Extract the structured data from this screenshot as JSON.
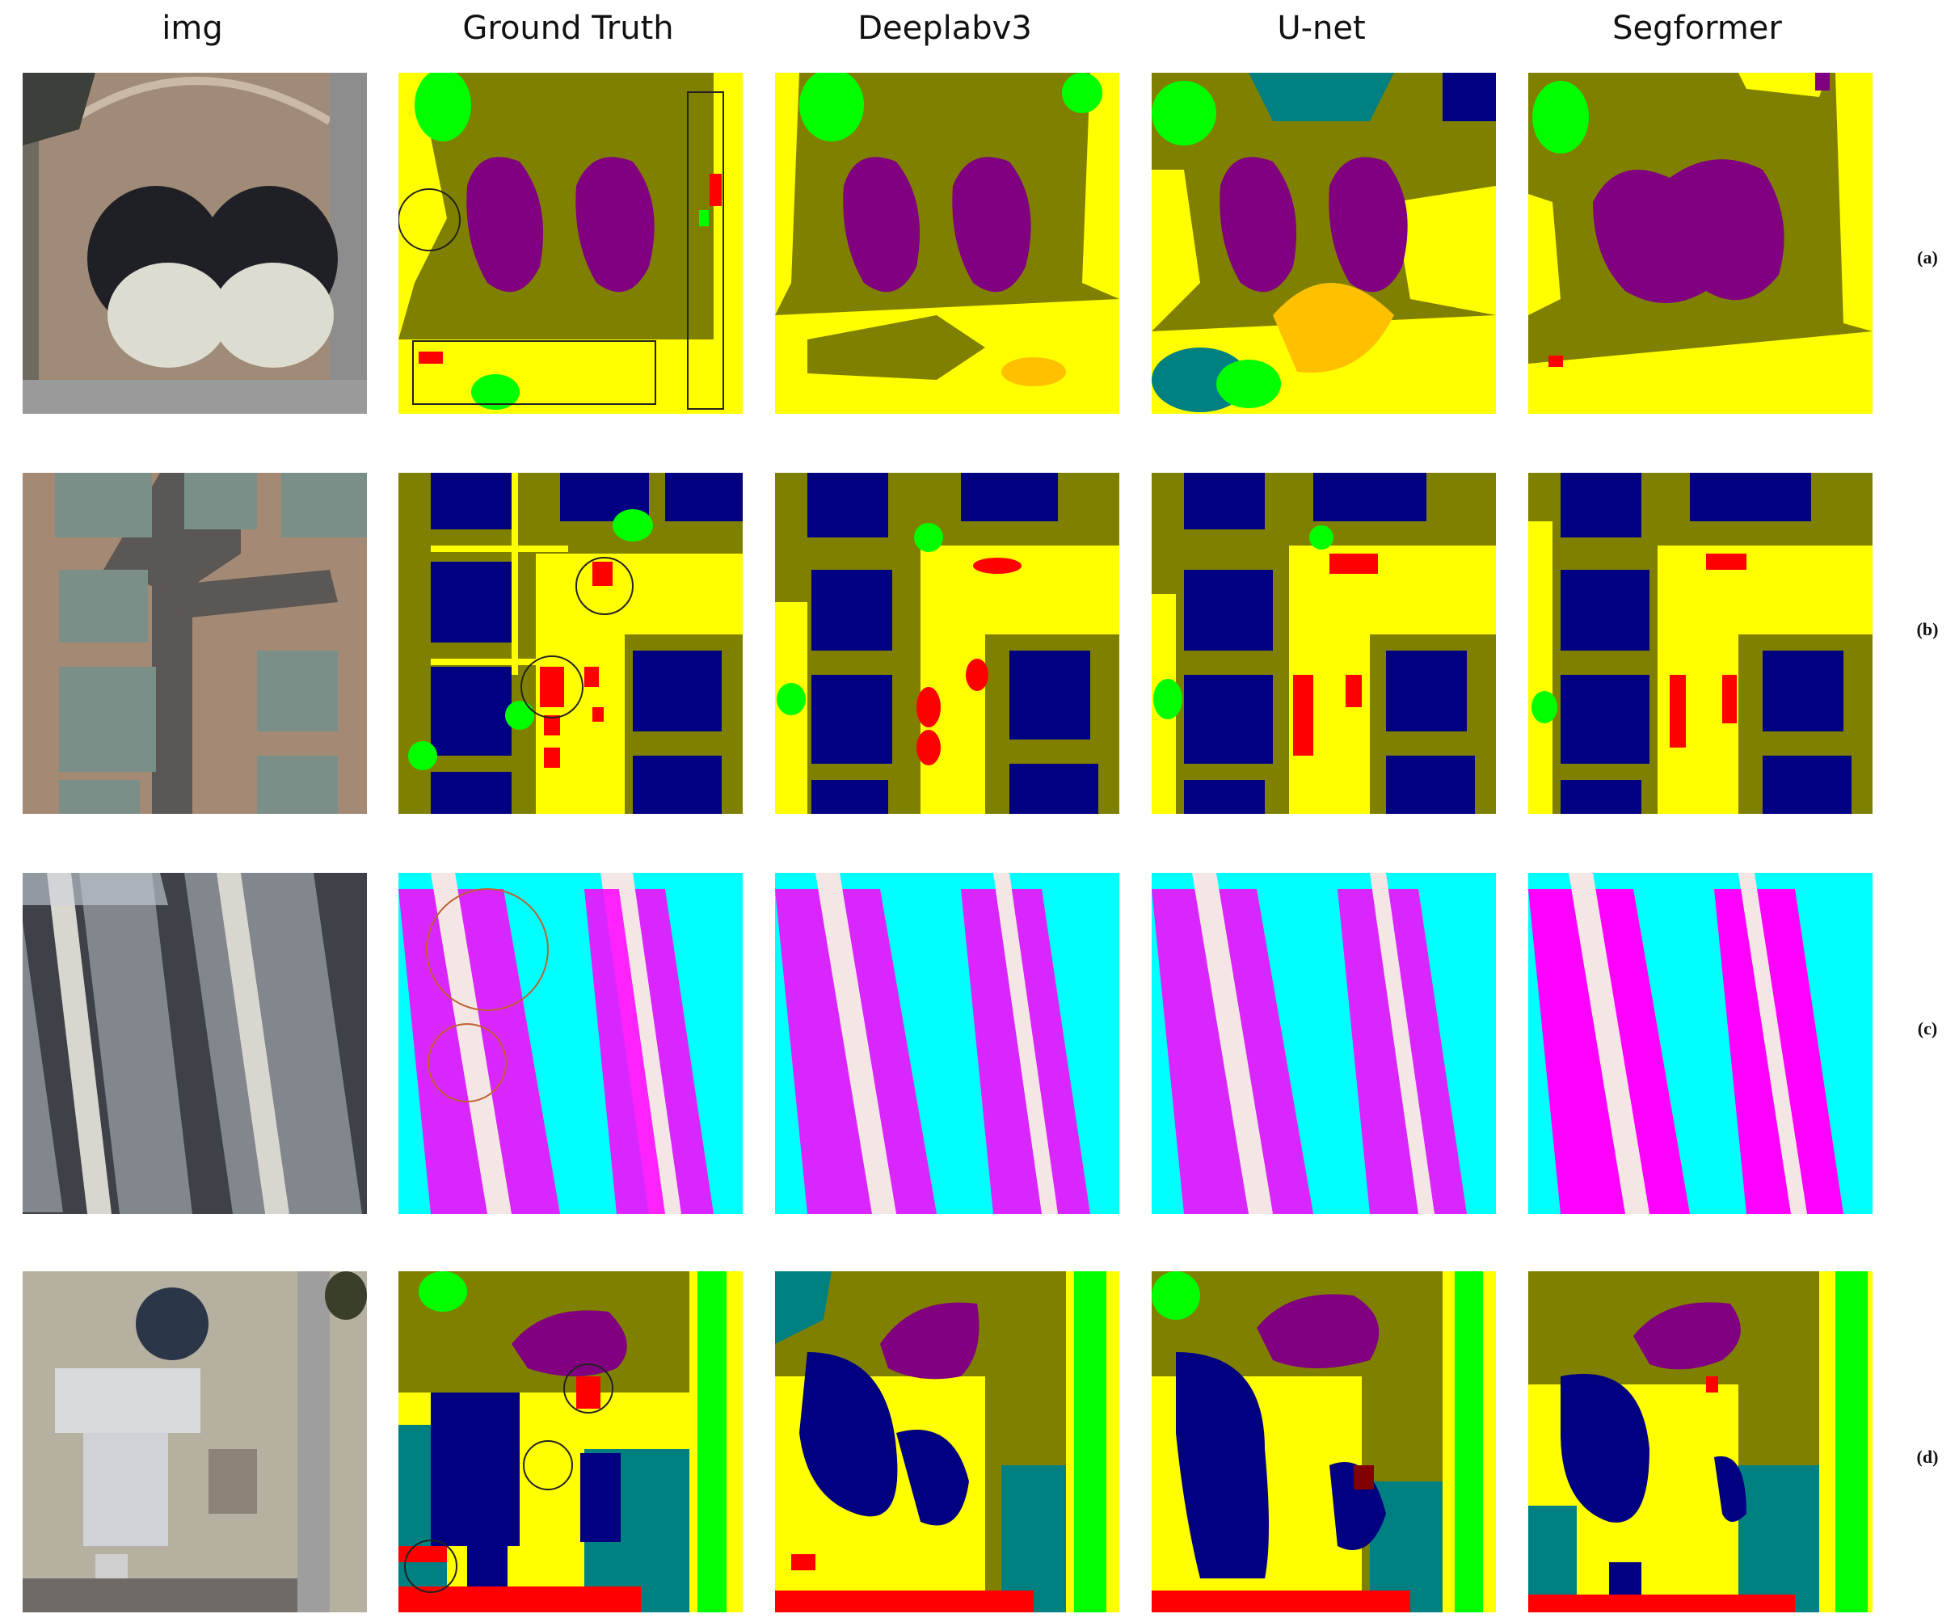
{
  "columns": [
    "img",
    "Ground Truth",
    "Deeplabv3",
    "U-net",
    "Segformer"
  ],
  "rows": [
    "(a)",
    "(b)",
    "(c)",
    "(d)"
  ],
  "palette": {
    "impervious": "#ffff00",
    "bare_ground": "#808000",
    "vegetation": "#00ff00",
    "building": "#000080",
    "car": "#ff0000",
    "tank": "#800080",
    "water": "#00ffff",
    "boat": "#ff00ff",
    "dock": "#f5e6e6",
    "low_vegetation": "#008080",
    "clutter": "#ffc000"
  }
}
